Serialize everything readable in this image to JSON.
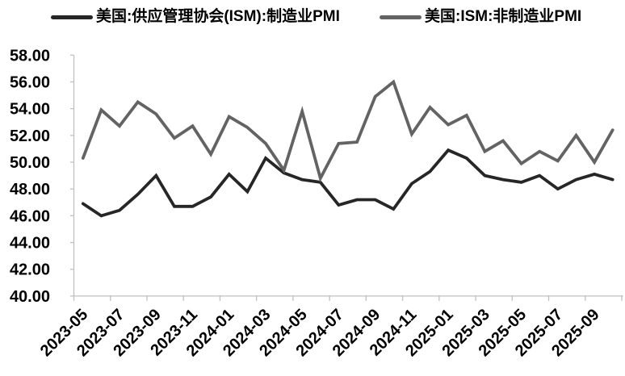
{
  "chart_data": {
    "type": "line",
    "title": "",
    "categories": [
      "2023-05",
      "2023-06",
      "2023-07",
      "2023-08",
      "2023-09",
      "2023-10",
      "2023-11",
      "2023-12",
      "2024-01",
      "2024-02",
      "2024-03",
      "2024-04",
      "2024-05",
      "2024-06",
      "2024-07",
      "2024-08",
      "2024-09",
      "2024-10",
      "2024-11",
      "2024-12",
      "2025-01",
      "2025-02",
      "2025-03",
      "2025-04",
      "2025-05",
      "2025-06",
      "2025-07",
      "2025-08",
      "2025-09",
      "2025-10"
    ],
    "series": [
      {
        "name": "美国:供应管理协会(ISM):制造业PMI",
        "color": "#262626",
        "values": [
          46.9,
          46.0,
          46.4,
          47.6,
          49.0,
          46.7,
          46.7,
          47.4,
          49.1,
          47.8,
          50.3,
          49.2,
          48.7,
          48.5,
          46.8,
          47.2,
          47.2,
          46.5,
          48.4,
          49.3,
          50.9,
          50.3,
          49.0,
          48.7,
          48.5,
          49.0,
          48.0,
          48.7,
          49.1,
          48.7
        ]
      },
      {
        "name": "美国:ISM:非制造业PMI",
        "color": "#636363",
        "values": [
          50.3,
          53.9,
          52.7,
          54.5,
          53.6,
          51.8,
          52.7,
          50.6,
          53.4,
          52.6,
          51.4,
          49.4,
          53.8,
          48.8,
          51.4,
          51.5,
          54.9,
          56.0,
          52.1,
          54.1,
          52.8,
          53.5,
          50.8,
          51.6,
          49.9,
          50.8,
          50.1,
          52.0,
          50.0,
          52.4
        ]
      }
    ],
    "ylim": [
      40,
      58
    ],
    "y_tick_labels": [
      "58.00",
      "56.00",
      "54.00",
      "52.00",
      "50.00",
      "48.00",
      "46.00",
      "44.00",
      "42.00",
      "40.00"
    ],
    "x_tick_labels": [
      "2023-05",
      "2023-07",
      "2023-09",
      "2023-11",
      "2024-01",
      "2024-03",
      "2024-05",
      "2024-07",
      "2024-09",
      "2024-11",
      "2025-01",
      "2025-03",
      "2025-05",
      "2025-07",
      "2025-09"
    ],
    "x_tick_every": 2,
    "grid": false,
    "legend_position": "top",
    "axis_color": "#c0c0c0",
    "text_color": "#000000"
  }
}
